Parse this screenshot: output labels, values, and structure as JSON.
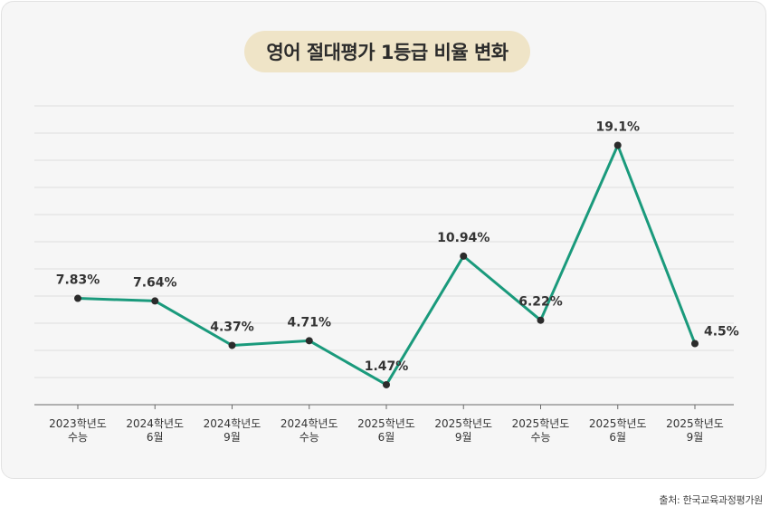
{
  "chart_data": {
    "type": "line",
    "title": "영어 절대평가 1등급 비율 변화",
    "categories": [
      [
        "2023학년도",
        "수능"
      ],
      [
        "2024학년도",
        "6월"
      ],
      [
        "2024학년도",
        "9월"
      ],
      [
        "2024학년도",
        "수능"
      ],
      [
        "2025학년도",
        "6월"
      ],
      [
        "2025학년도",
        "9월"
      ],
      [
        "2025학년도",
        "수능"
      ],
      [
        "2025학년도",
        "6월"
      ],
      [
        "2025학년도",
        "9월"
      ]
    ],
    "values": [
      7.83,
      7.64,
      4.37,
      4.71,
      1.47,
      10.94,
      6.22,
      19.1,
      4.5
    ],
    "labels": [
      "7.83%",
      "7.64%",
      "4.37%",
      "4.71%",
      "1.47%",
      "10.94%",
      "6.22%",
      "19.1%",
      "4.5%"
    ],
    "ylim": [
      0,
      22
    ],
    "grid": true,
    "xlabel": "",
    "ylabel": "",
    "line_color": "#1a9a7c",
    "point_color": "#2b2b2b"
  },
  "source": "출처: 한국교육과정평가원"
}
